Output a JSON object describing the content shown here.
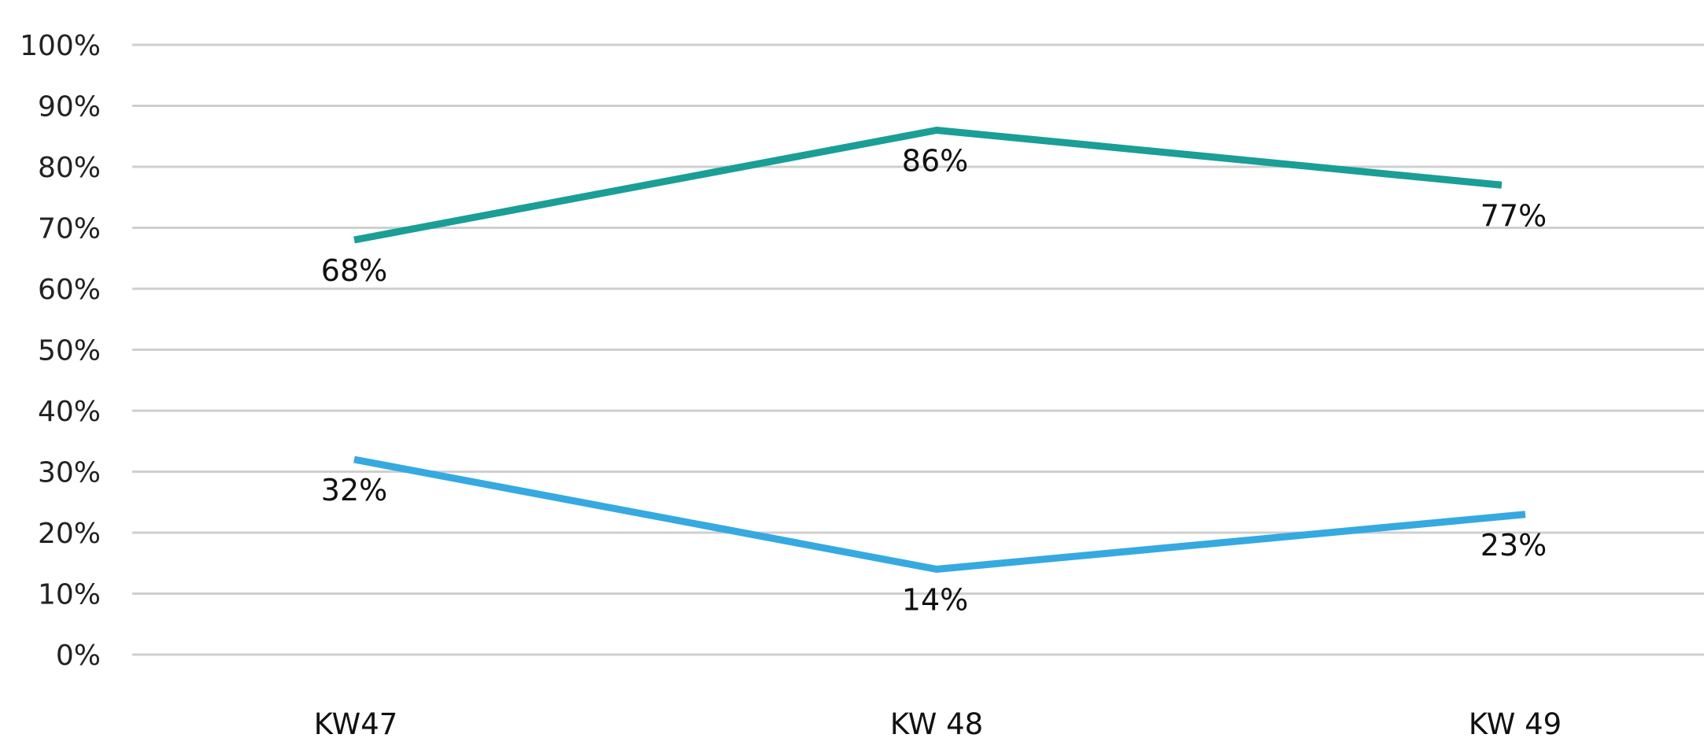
{
  "chart_data": {
    "type": "line",
    "categories": [
      "KW47",
      "KW 48",
      "KW 49"
    ],
    "series": [
      {
        "values": [
          68,
          86,
          77
        ],
        "color": "#1a9e96",
        "data_labels": [
          "68%",
          "86%",
          "77%"
        ]
      },
      {
        "values": [
          32,
          14,
          23
        ],
        "color": "#36a9e1",
        "data_labels": [
          "32%",
          "14%",
          "23%"
        ]
      }
    ],
    "y_tick_labels": [
      "0%",
      "10%",
      "20%",
      "30%",
      "40%",
      "50%",
      "60%",
      "70%",
      "80%",
      "90%",
      "100%"
    ],
    "ylim": [
      0,
      100
    ],
    "y_unit": "%",
    "grid": true,
    "legend": "none",
    "title": "",
    "xlabel": "",
    "ylabel": ""
  }
}
